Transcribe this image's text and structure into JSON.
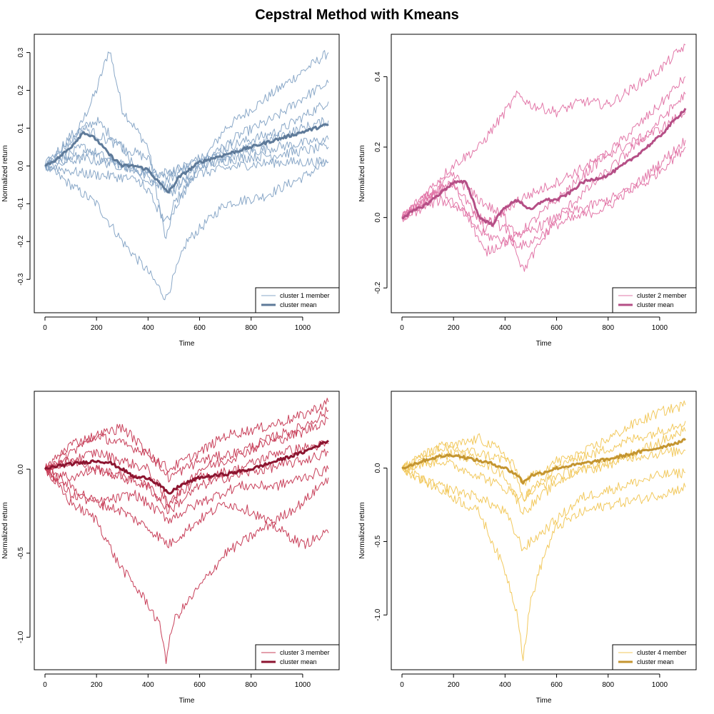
{
  "figure": {
    "title": "Cepstral Method with Kmeans"
  },
  "chart_data": [
    {
      "type": "line",
      "xlabel": "Time",
      "ylabel": "Normalized return",
      "xlim": [
        0,
        1100
      ],
      "ylim": [
        -0.36,
        0.32
      ],
      "xticks": [
        "0",
        "200",
        "400",
        "600",
        "800",
        "1000"
      ],
      "yticks": [
        "-0.3",
        "-0.2",
        "-0.1",
        "0.0",
        "0.1",
        "0.2",
        "0.3"
      ],
      "ytick_values": [
        -0.3,
        -0.2,
        -0.1,
        0.0,
        0.1,
        0.2,
        0.3
      ],
      "legend": {
        "position": "bottom-right",
        "member_label": "cluster 1 member",
        "mean_label": "cluster mean"
      },
      "colors": {
        "member": "#8aa8c8",
        "mean": "#5e7a99"
      },
      "series": [
        {
          "role": "member",
          "x": [
            0,
            100,
            200,
            250,
            300,
            400,
            470,
            500,
            600,
            700,
            800,
            900,
            1000,
            1100
          ],
          "y": [
            0.0,
            0.05,
            0.2,
            0.31,
            0.15,
            0.05,
            -0.2,
            -0.1,
            0.0,
            0.1,
            0.15,
            0.2,
            0.25,
            0.3
          ]
        },
        {
          "role": "member",
          "x": [
            0,
            100,
            200,
            300,
            400,
            470,
            550,
            700,
            850,
            1000,
            1100
          ],
          "y": [
            0.0,
            -0.05,
            -0.1,
            -0.2,
            -0.28,
            -0.35,
            -0.2,
            -0.1,
            -0.08,
            -0.03,
            0.01
          ]
        },
        {
          "role": "member",
          "x": [
            0,
            100,
            200,
            300,
            400,
            480,
            600,
            750,
            900,
            1000,
            1100
          ],
          "y": [
            0.0,
            0.08,
            0.12,
            0.05,
            0.02,
            -0.08,
            0.0,
            0.08,
            0.13,
            0.18,
            0.22
          ]
        },
        {
          "role": "member",
          "x": [
            0,
            150,
            300,
            450,
            600,
            750,
            900,
            1100
          ],
          "y": [
            0.0,
            0.03,
            0.01,
            -0.05,
            0.02,
            0.06,
            0.09,
            0.17
          ]
        },
        {
          "role": "member",
          "x": [
            0,
            150,
            300,
            450,
            600,
            750,
            900,
            1100
          ],
          "y": [
            0.0,
            0.05,
            0.0,
            -0.03,
            0.02,
            0.03,
            0.05,
            0.07
          ]
        },
        {
          "role": "member",
          "x": [
            0,
            150,
            300,
            450,
            600,
            750,
            900,
            1100
          ],
          "y": [
            0.0,
            0.02,
            0.0,
            -0.02,
            0.0,
            0.02,
            0.03,
            0.05
          ]
        },
        {
          "role": "member",
          "x": [
            0,
            150,
            300,
            480,
            600,
            750,
            900,
            1100
          ],
          "y": [
            0.0,
            -0.02,
            -0.03,
            -0.06,
            -0.02,
            0.0,
            0.01,
            0.01
          ]
        },
        {
          "role": "member",
          "x": [
            0,
            150,
            300,
            470,
            600,
            800,
            1000,
            1100
          ],
          "y": [
            0.0,
            0.1,
            0.05,
            -0.15,
            0.0,
            0.05,
            0.1,
            0.12
          ]
        },
        {
          "role": "mean",
          "x": [
            0,
            50,
            100,
            150,
            200,
            250,
            300,
            350,
            400,
            450,
            480,
            520,
            600,
            700,
            800,
            900,
            1000,
            1100
          ],
          "y": [
            0.0,
            0.02,
            0.05,
            0.09,
            0.07,
            0.03,
            0.0,
            0.0,
            -0.01,
            -0.05,
            -0.07,
            -0.03,
            0.01,
            0.03,
            0.05,
            0.07,
            0.09,
            0.11
          ]
        }
      ]
    },
    {
      "type": "line",
      "xlabel": "Time",
      "ylabel": "Normalized return",
      "xlim": [
        0,
        1100
      ],
      "ylim": [
        -0.24,
        0.49
      ],
      "xticks": [
        "0",
        "200",
        "400",
        "600",
        "800",
        "1000"
      ],
      "yticks": [
        "-0.2",
        "0.0",
        "0.2",
        "0.4"
      ],
      "ytick_values": [
        -0.2,
        0.0,
        0.2,
        0.4
      ],
      "legend": {
        "position": "bottom-right",
        "member_label": "cluster 2 member",
        "mean_label": "cluster mean"
      },
      "colors": {
        "member": "#e277a8",
        "mean": "#b54f86"
      },
      "series": [
        {
          "role": "member",
          "x": [
            0,
            200,
            300,
            450,
            500,
            600,
            700,
            800,
            900,
            1000,
            1100
          ],
          "y": [
            0.0,
            0.15,
            0.2,
            0.35,
            0.32,
            0.3,
            0.33,
            0.32,
            0.37,
            0.42,
            0.49
          ]
        },
        {
          "role": "member",
          "x": [
            0,
            200,
            320,
            450,
            600,
            750,
            900,
            1000,
            1100
          ],
          "y": [
            0.0,
            0.1,
            -0.1,
            -0.05,
            0.05,
            0.15,
            0.25,
            0.32,
            0.4
          ]
        },
        {
          "role": "member",
          "x": [
            0,
            200,
            300,
            400,
            470,
            600,
            750,
            900,
            1100
          ],
          "y": [
            0.0,
            0.12,
            0.05,
            0.0,
            -0.15,
            0.0,
            0.1,
            0.2,
            0.35
          ]
        },
        {
          "role": "member",
          "x": [
            0,
            150,
            300,
            470,
            600,
            800,
            950,
            1100
          ],
          "y": [
            0.0,
            0.05,
            0.0,
            -0.05,
            0.0,
            0.05,
            0.1,
            0.2
          ]
        },
        {
          "role": "member",
          "x": [
            0,
            150,
            320,
            480,
            600,
            800,
            950,
            1100
          ],
          "y": [
            0.0,
            0.08,
            -0.05,
            -0.08,
            -0.02,
            0.03,
            0.12,
            0.22
          ]
        },
        {
          "role": "member",
          "x": [
            0,
            200,
            320,
            450,
            600,
            800,
            1000,
            1100
          ],
          "y": [
            0.0,
            0.1,
            -0.03,
            0.05,
            0.1,
            0.18,
            0.25,
            0.3
          ]
        },
        {
          "role": "mean",
          "x": [
            0,
            50,
            100,
            150,
            200,
            250,
            300,
            350,
            400,
            450,
            500,
            550,
            600,
            650,
            700,
            800,
            900,
            1000,
            1100
          ],
          "y": [
            0.0,
            0.02,
            0.04,
            0.07,
            0.1,
            0.1,
            0.0,
            -0.02,
            0.03,
            0.05,
            0.02,
            0.05,
            0.05,
            0.07,
            0.1,
            0.12,
            0.17,
            0.23,
            0.31
          ]
        }
      ]
    },
    {
      "type": "line",
      "xlabel": "Time",
      "ylabel": "Normalized return",
      "xlim": [
        0,
        1100
      ],
      "ylim": [
        -1.13,
        0.4
      ],
      "xticks": [
        "0",
        "200",
        "400",
        "600",
        "800",
        "1000"
      ],
      "yticks": [
        "-1.0",
        "-0.5",
        "0.0"
      ],
      "ytick_values": [
        -1.0,
        -0.5,
        0.0
      ],
      "legend": {
        "position": "bottom-right",
        "member_label": "cluster 3 member",
        "mean_label": "cluster mean"
      },
      "colors": {
        "member": "#c8405a",
        "mean": "#8c1530"
      },
      "series": [
        {
          "role": "member",
          "x": [
            0,
            100,
            200,
            280,
            350,
            400,
            450,
            470,
            500,
            600,
            700,
            800,
            900,
            1000,
            1100
          ],
          "y": [
            0.0,
            -0.2,
            -0.3,
            -0.55,
            -0.7,
            -0.8,
            -0.95,
            -1.13,
            -0.9,
            -0.7,
            -0.5,
            -0.4,
            -0.3,
            -0.2,
            -0.05
          ]
        },
        {
          "role": "member",
          "x": [
            0,
            100,
            200,
            300,
            400,
            480,
            600,
            700,
            800,
            900,
            1000,
            1100
          ],
          "y": [
            0.0,
            -0.1,
            -0.2,
            -0.25,
            -0.35,
            -0.45,
            -0.3,
            -0.2,
            -0.25,
            -0.35,
            -0.45,
            -0.38
          ]
        },
        {
          "role": "member",
          "x": [
            0,
            100,
            200,
            300,
            400,
            480,
            600,
            700,
            850,
            1000,
            1100
          ],
          "y": [
            0.0,
            0.1,
            0.2,
            0.15,
            0.1,
            0.0,
            0.1,
            0.2,
            0.25,
            0.32,
            0.4
          ]
        },
        {
          "role": "member",
          "x": [
            0,
            100,
            200,
            300,
            400,
            480,
            600,
            700,
            850,
            1000,
            1100
          ],
          "y": [
            0.0,
            0.05,
            0.1,
            0.05,
            0.0,
            -0.2,
            0.0,
            0.05,
            0.15,
            0.22,
            0.3
          ]
        },
        {
          "role": "member",
          "x": [
            0,
            100,
            200,
            300,
            400,
            480,
            600,
            700,
            850,
            1000,
            1100
          ],
          "y": [
            0.0,
            -0.05,
            0.0,
            -0.05,
            -0.1,
            -0.25,
            -0.1,
            -0.05,
            0.0,
            0.05,
            0.1
          ]
        },
        {
          "role": "member",
          "x": [
            0,
            100,
            200,
            300,
            400,
            480,
            600,
            750,
            900,
            1000,
            1100
          ],
          "y": [
            0.0,
            0.15,
            0.2,
            0.25,
            0.1,
            -0.05,
            0.05,
            0.1,
            0.2,
            0.25,
            0.35
          ]
        },
        {
          "role": "member",
          "x": [
            0,
            100,
            200,
            350,
            480,
            600,
            750,
            900,
            1000,
            1100
          ],
          "y": [
            0.0,
            -0.15,
            -0.2,
            -0.15,
            -0.3,
            -0.2,
            -0.1,
            -0.1,
            -0.05,
            0.0
          ]
        },
        {
          "role": "member",
          "x": [
            0,
            100,
            200,
            350,
            480,
            600,
            750,
            900,
            1100
          ],
          "y": [
            0.0,
            0.05,
            0.0,
            -0.05,
            -0.2,
            -0.05,
            0.0,
            0.1,
            0.15
          ]
        },
        {
          "role": "mean",
          "x": [
            0,
            50,
            100,
            150,
            200,
            250,
            300,
            350,
            400,
            450,
            480,
            520,
            600,
            700,
            800,
            900,
            1000,
            1100
          ],
          "y": [
            0.0,
            0.02,
            0.03,
            0.04,
            0.05,
            0.04,
            0.0,
            -0.05,
            -0.05,
            -0.1,
            -0.15,
            -0.1,
            -0.05,
            -0.03,
            0.0,
            0.05,
            0.1,
            0.17
          ]
        }
      ]
    },
    {
      "type": "line",
      "xlabel": "Time",
      "ylabel": "Normalized return",
      "xlim": [
        0,
        1100
      ],
      "ylim": [
        -1.3,
        0.45
      ],
      "xticks": [
        "0",
        "200",
        "400",
        "600",
        "800",
        "1000"
      ],
      "yticks": [
        "-1.0",
        "-0.5",
        "0.0"
      ],
      "ytick_values": [
        -1.0,
        -0.5,
        0.0
      ],
      "legend": {
        "position": "bottom-right",
        "member_label": "cluster 4 member",
        "mean_label": "cluster mean"
      },
      "colors": {
        "member": "#f2c95e",
        "mean": "#c49530"
      },
      "series": [
        {
          "role": "member",
          "x": [
            0,
            100,
            200,
            300,
            350,
            400,
            450,
            470,
            500,
            550,
            600,
            700,
            800,
            900,
            1000,
            1100
          ],
          "y": [
            0.0,
            -0.1,
            -0.2,
            -0.3,
            -0.5,
            -0.7,
            -1.0,
            -1.3,
            -0.9,
            -0.6,
            -0.4,
            -0.3,
            -0.25,
            -0.22,
            -0.18,
            -0.13
          ]
        },
        {
          "role": "member",
          "x": [
            0,
            100,
            200,
            300,
            400,
            470,
            600,
            700,
            800,
            900,
            1000,
            1100
          ],
          "y": [
            0.0,
            0.1,
            0.15,
            0.2,
            0.1,
            -0.2,
            0.0,
            0.1,
            0.2,
            0.3,
            0.38,
            0.43
          ]
        },
        {
          "role": "member",
          "x": [
            0,
            100,
            200,
            300,
            400,
            470,
            600,
            700,
            800,
            900,
            1000,
            1100
          ],
          "y": [
            0.0,
            0.05,
            0.1,
            0.05,
            -0.05,
            -0.3,
            -0.1,
            0.0,
            0.05,
            0.1,
            0.18,
            0.25
          ]
        },
        {
          "role": "member",
          "x": [
            0,
            100,
            200,
            300,
            400,
            470,
            600,
            700,
            800,
            1000,
            1100
          ],
          "y": [
            0.0,
            -0.1,
            -0.15,
            -0.2,
            -0.3,
            -0.55,
            -0.35,
            -0.2,
            -0.15,
            -0.05,
            -0.03
          ]
        },
        {
          "role": "member",
          "x": [
            0,
            150,
            300,
            420,
            470,
            600,
            750,
            900,
            1000,
            1100
          ],
          "y": [
            0.0,
            0.15,
            0.1,
            0.05,
            -0.1,
            0.05,
            0.1,
            0.2,
            0.25,
            0.32
          ]
        },
        {
          "role": "member",
          "x": [
            0,
            150,
            300,
            470,
            600,
            750,
            900,
            1100
          ],
          "y": [
            0.0,
            0.05,
            -0.05,
            -0.2,
            -0.05,
            0.0,
            0.08,
            0.12
          ]
        },
        {
          "role": "mean",
          "x": [
            0,
            50,
            100,
            150,
            200,
            250,
            300,
            350,
            400,
            450,
            470,
            500,
            550,
            600,
            700,
            800,
            900,
            1000,
            1100
          ],
          "y": [
            0.0,
            0.03,
            0.06,
            0.08,
            0.09,
            0.07,
            0.05,
            0.03,
            0.0,
            -0.05,
            -0.1,
            -0.05,
            -0.03,
            0.0,
            0.03,
            0.06,
            0.1,
            0.14,
            0.19
          ]
        }
      ]
    }
  ]
}
